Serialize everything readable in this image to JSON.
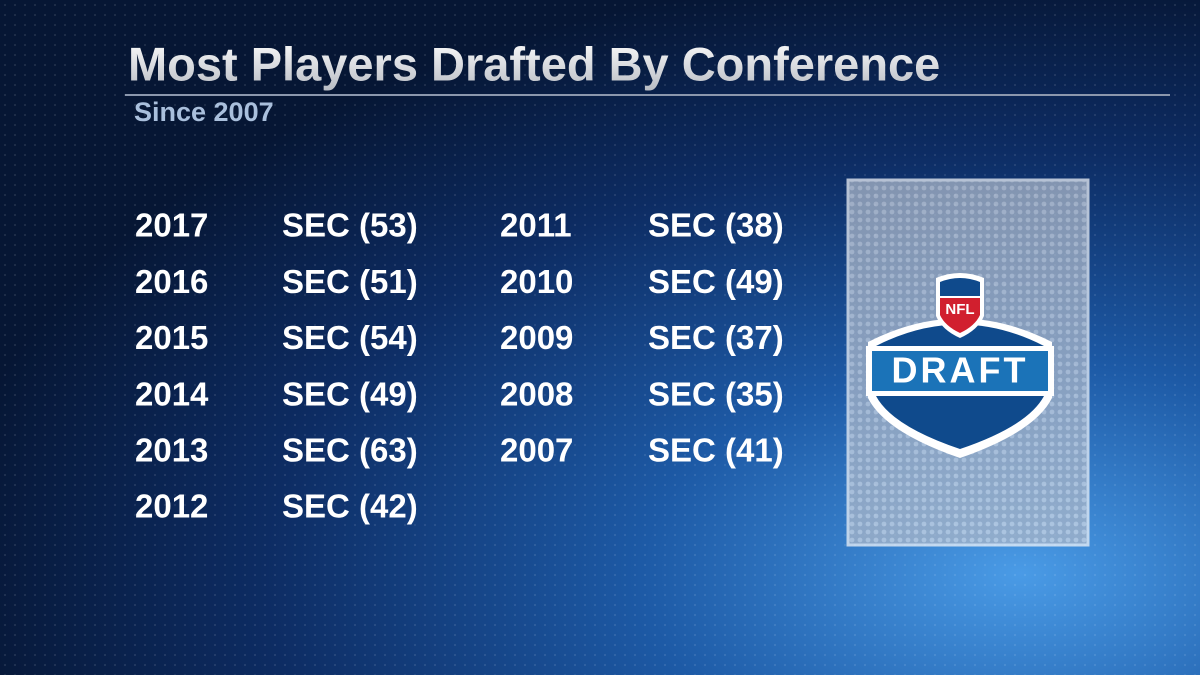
{
  "header": {
    "title": "Most Players Drafted By Conference",
    "subtitle": "Since 2007"
  },
  "table": {
    "columns": [
      {
        "rows": [
          [
            "2017",
            "SEC (53)"
          ],
          [
            "2016",
            "SEC (51)"
          ],
          [
            "2015",
            "SEC (54)"
          ],
          [
            "2014",
            "SEC (49)"
          ],
          [
            "2013",
            "SEC (63)"
          ],
          [
            "2012",
            "SEC (42)"
          ]
        ]
      },
      {
        "rows": [
          [
            "2011",
            "SEC (38)"
          ],
          [
            "2010",
            "SEC (49)"
          ],
          [
            "2009",
            "SEC (37)"
          ],
          [
            "2008",
            "SEC (35)"
          ],
          [
            "2007",
            "SEC (41)"
          ]
        ]
      }
    ]
  },
  "logo": {
    "shield": "NFL",
    "banner": "DRAFT"
  }
}
